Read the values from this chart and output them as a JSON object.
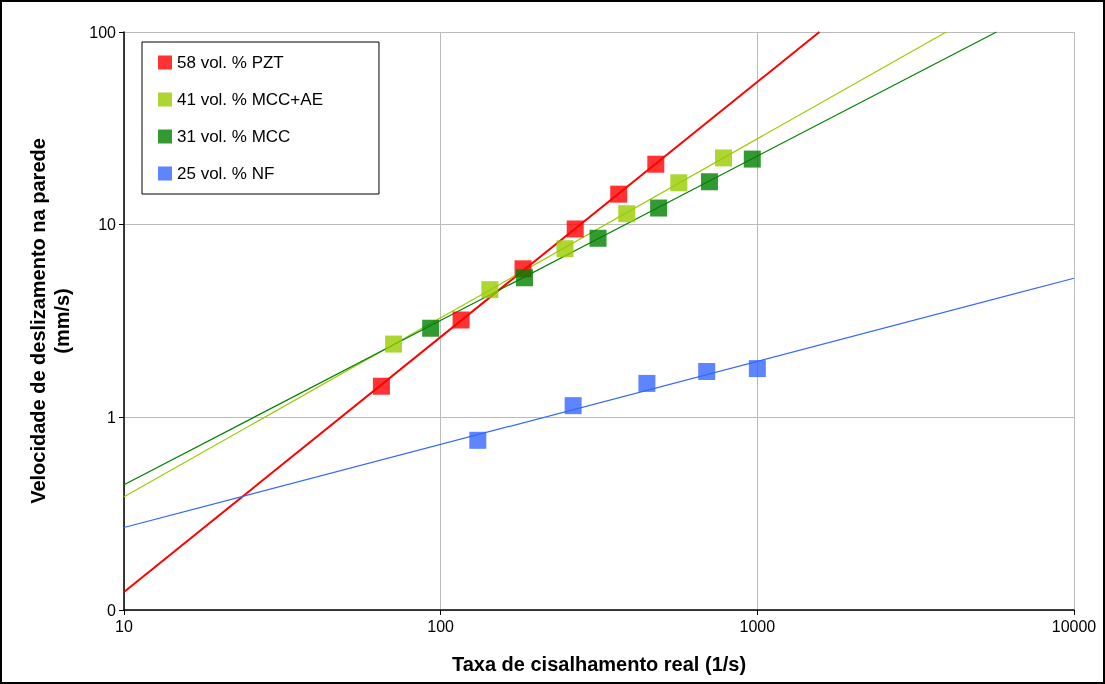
{
  "chart_data": {
    "type": "scatter",
    "xlabel": "Taxa de cisalhamento real (1/s)",
    "ylabel": "Velocidade de deslizamento na parede\n(mm/s)",
    "log": "xy",
    "grid": true,
    "legend": "top left",
    "marker": "square",
    "xlim": [
      10,
      10000
    ],
    "xticks": [
      10,
      100,
      1000,
      10000
    ],
    "ylim": [
      0.1,
      100
    ],
    "yticks": [
      {
        "value": 0.1,
        "label": "0"
      },
      1,
      10,
      100
    ],
    "series": [
      {
        "name": "58 vol. % PZT",
        "color": "#ff0000",
        "x": [
          65,
          116,
          182,
          266,
          365,
          478
        ],
        "values": [
          1.45,
          3.2,
          5.9,
          9.5,
          14.4,
          20.6
        ]
      },
      {
        "name": "41 vol. % MCC+AE",
        "color": "#99cc00",
        "x": [
          71,
          143,
          247,
          387,
          565,
          782
        ],
        "values": [
          2.4,
          4.6,
          7.5,
          11.4,
          16.5,
          22.2
        ]
      },
      {
        "name": "31 vol. % MCC",
        "color": "#008000",
        "x": [
          93,
          184,
          314,
          488,
          706,
          964
        ],
        "values": [
          2.9,
          5.3,
          8.5,
          12.2,
          16.7,
          21.9
        ]
      },
      {
        "name": "25 vol. % NF",
        "color": "#3366ff",
        "x": [
          131,
          262,
          448,
          692,
          1000
        ],
        "values": [
          0.76,
          1.15,
          1.5,
          1.73,
          1.79
        ]
      },
      {
        "type": "line",
        "marker": "none",
        "color": "#ff0000",
        "x": [
          10,
          1570
        ],
        "values": [
          0.124,
          100
        ]
      },
      {
        "type": "line",
        "marker": "none",
        "color": "#99cc00",
        "x": [
          10,
          3950
        ],
        "values": [
          0.387,
          100
        ]
      },
      {
        "type": "line",
        "marker": "none",
        "color": "#008000",
        "x": [
          10,
          5690
        ],
        "values": [
          0.447,
          100
        ]
      },
      {
        "type": "line",
        "marker": "none",
        "color": "#3366ff",
        "x": [
          10,
          10000
        ],
        "values": [
          0.268,
          5.27
        ]
      }
    ]
  }
}
